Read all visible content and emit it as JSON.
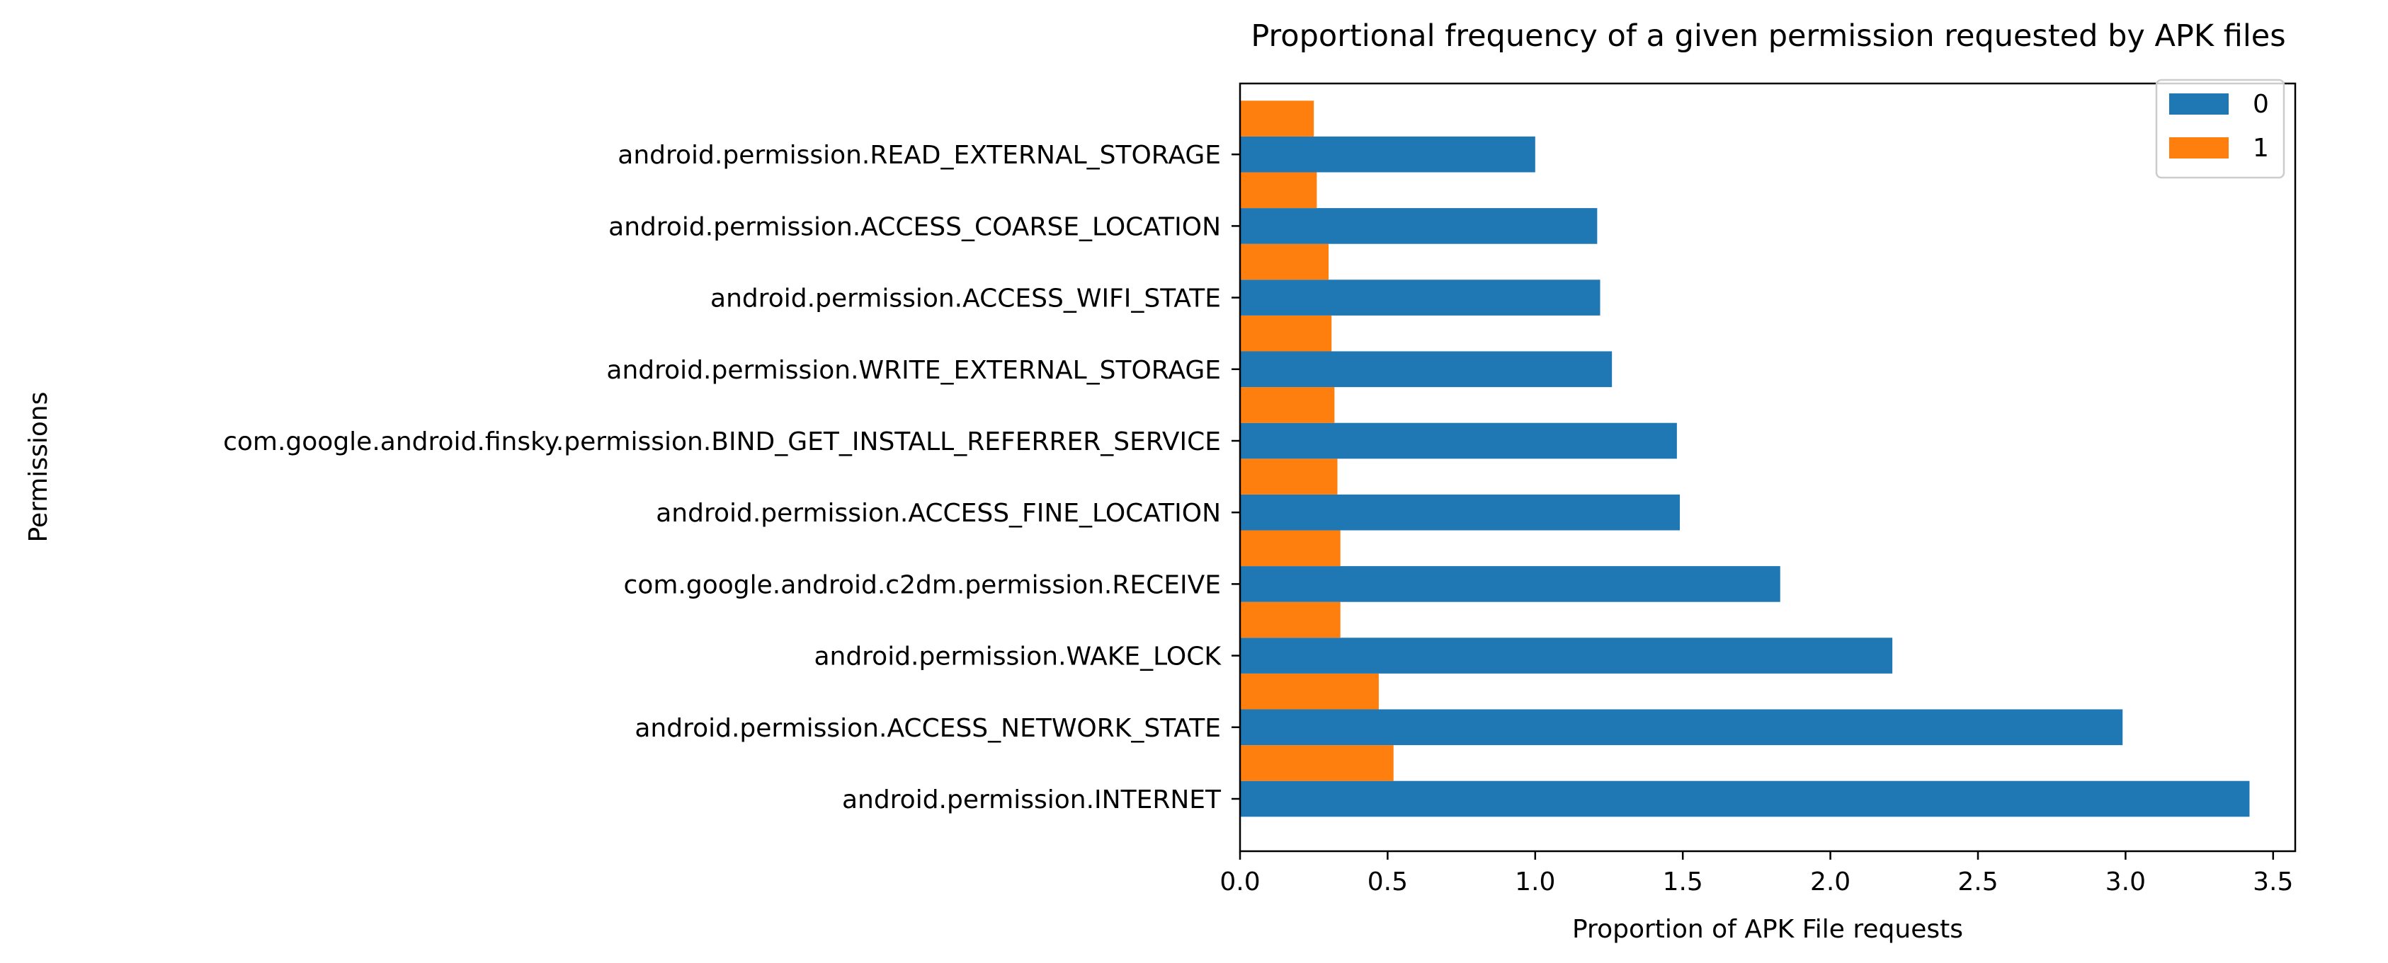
{
  "chart_data": {
    "type": "bar",
    "orientation": "horizontal",
    "title": "Proportional frequency of a given permission requested by APK files",
    "xlabel": "Proportion of APK File requests",
    "ylabel": "Permissions",
    "xlim": [
      0,
      3.6
    ],
    "xticks": [
      "0.0",
      "0.5",
      "1.0",
      "1.5",
      "2.0",
      "2.5",
      "3.0",
      "3.5"
    ],
    "categories": [
      "android.permission.INTERNET",
      "android.permission.ACCESS_NETWORK_STATE",
      "android.permission.WAKE_LOCK",
      "com.google.android.c2dm.permission.RECEIVE",
      "android.permission.ACCESS_FINE_LOCATION",
      "com.google.android.finsky.permission.BIND_GET_INSTALL_REFERRER_SERVICE",
      "android.permission.WRITE_EXTERNAL_STORAGE",
      "android.permission.ACCESS_WIFI_STATE",
      "android.permission.ACCESS_COARSE_LOCATION",
      "android.permission.READ_EXTERNAL_STORAGE"
    ],
    "series": [
      {
        "name": "0",
        "color": "#1f77b4",
        "values": [
          3.42,
          2.99,
          2.21,
          1.83,
          1.49,
          1.48,
          1.26,
          1.22,
          1.21,
          1.0
        ]
      },
      {
        "name": "1",
        "color": "#ff7f0e",
        "values": [
          0.52,
          0.47,
          0.34,
          0.34,
          0.33,
          0.32,
          0.31,
          0.3,
          0.26,
          0.25
        ]
      }
    ],
    "legend": {
      "position": "top-right"
    },
    "grid": false
  }
}
